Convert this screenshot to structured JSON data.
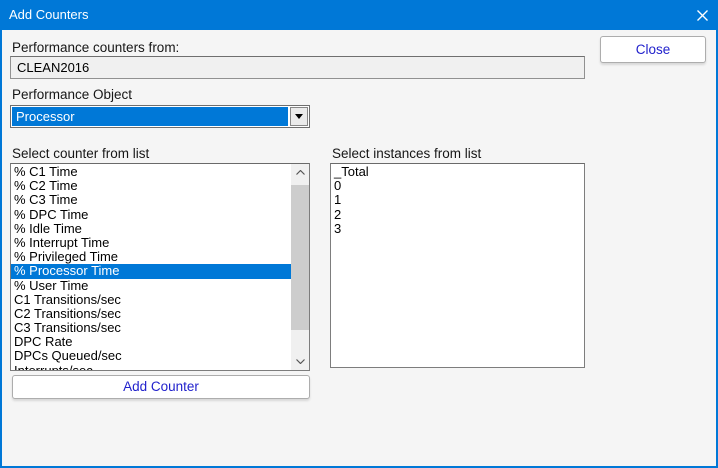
{
  "window": {
    "title": "Add Counters"
  },
  "colors": {
    "accent": "#0078d7",
    "dialog_background": "#f5f5f5",
    "selection": "#0078d7",
    "button_text": "#2121cc"
  },
  "labels": {
    "counters_from": "Performance counters from:",
    "performance_object": "Performance Object",
    "select_counter": "Select counter from list",
    "select_instances": "Select instances from list"
  },
  "counters_from_field": {
    "value": "CLEAN2016"
  },
  "close_button": {
    "label": "Close"
  },
  "add_counter_button": {
    "label": "Add Counter"
  },
  "performance_object_combo": {
    "value": "Processor"
  },
  "counter_list": {
    "items": [
      "% C1 Time",
      "% C2 Time",
      "% C3 Time",
      "% DPC Time",
      "% Idle Time",
      "% Interrupt Time",
      "% Privileged Time",
      "% Processor Time",
      "% User Time",
      "C1 Transitions/sec",
      "C2 Transitions/sec",
      "C3 Transitions/sec",
      "DPC Rate",
      "DPCs Queued/sec",
      "Interrupts/sec"
    ],
    "selected_index": 7
  },
  "instance_list": {
    "items": [
      "_Total",
      "0",
      "1",
      "2",
      "3"
    ],
    "selected_index": -1
  }
}
